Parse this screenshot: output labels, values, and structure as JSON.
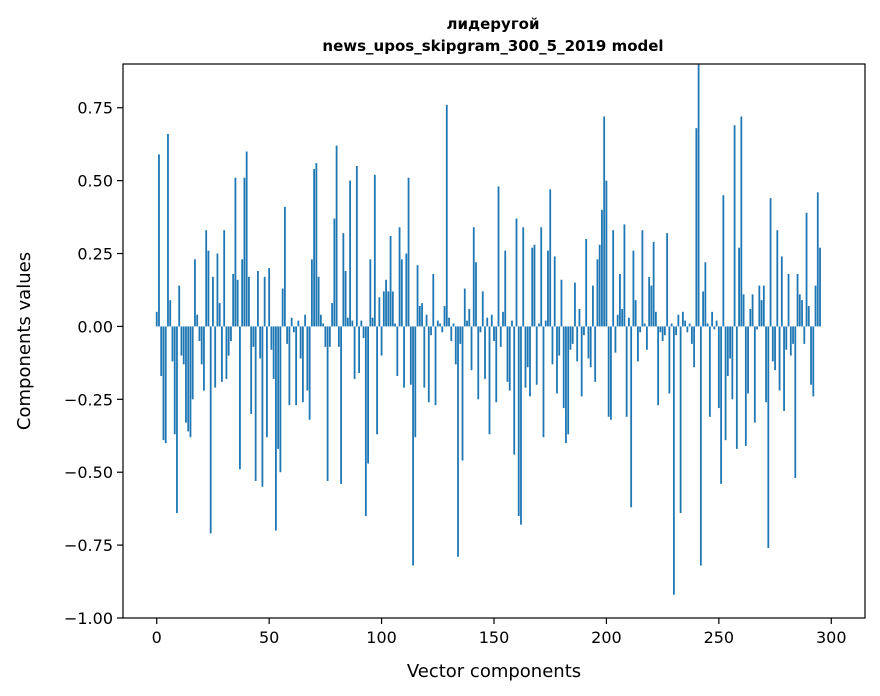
{
  "chart_data": {
    "type": "bar",
    "title": "лидеругой",
    "subtitle": "news_upos_skipgram_300_5_2019 model",
    "xlabel": "Vector components",
    "ylabel": "Components values",
    "xlim": [
      -15,
      315
    ],
    "ylim": [
      -1.0,
      0.9
    ],
    "xticks": [
      0,
      50,
      100,
      150,
      200,
      250,
      300
    ],
    "xtick_labels": [
      "0",
      "50",
      "100",
      "150",
      "200",
      "250",
      "300"
    ],
    "yticks": [
      -1.0,
      -0.75,
      -0.5,
      -0.25,
      0.0,
      0.25,
      0.5,
      0.75
    ],
    "ytick_labels": [
      "−1.00",
      "−0.75",
      "−0.50",
      "−0.25",
      "0.00",
      "0.25",
      "0.50",
      "0.75"
    ],
    "grid": false,
    "color": "#1f77b4",
    "series": [
      {
        "values": [
          0.05,
          0.59,
          -0.17,
          -0.39,
          -0.4,
          0.66,
          0.09,
          -0.12,
          -0.37,
          -0.64,
          0.14,
          -0.1,
          -0.13,
          -0.33,
          -0.36,
          -0.38,
          -0.25,
          0.23,
          0.04,
          -0.05,
          -0.13,
          -0.22,
          0.33,
          0.26,
          -0.71,
          0.17,
          -0.21,
          0.25,
          0.08,
          -0.19,
          0.33,
          -0.18,
          -0.1,
          -0.05,
          0.18,
          0.51,
          0.16,
          -0.49,
          0.23,
          0.51,
          0.6,
          0.17,
          -0.3,
          -0.07,
          -0.53,
          0.19,
          -0.11,
          -0.55,
          0.17,
          -0.38,
          0.2,
          -0.08,
          -0.18,
          -0.7,
          -0.42,
          -0.5,
          0.13,
          0.41,
          -0.06,
          -0.27,
          0.03,
          -0.02,
          -0.27,
          0.02,
          -0.11,
          -0.26,
          0.04,
          -0.22,
          -0.32,
          0.23,
          0.54,
          0.56,
          0.17,
          0.04,
          0.01,
          -0.07,
          -0.53,
          -0.07,
          0.08,
          0.37,
          0.62,
          -0.07,
          -0.54,
          0.32,
          0.19,
          0.03,
          0.5,
          0.02,
          -0.18,
          0.55,
          -0.16,
          0.02,
          -0.04,
          -0.65,
          -0.47,
          0.23,
          0.03,
          0.52,
          -0.37,
          0.1,
          -0.1,
          0.12,
          0.16,
          0.12,
          0.31,
          0.12,
          0.01,
          -0.17,
          0.34,
          0.23,
          -0.21,
          0.25,
          0.51,
          -0.2,
          -0.82,
          -0.38,
          0.21,
          0.07,
          0.08,
          -0.21,
          0.04,
          -0.26,
          -0.03,
          0.18,
          -0.27,
          0.02,
          0.01,
          -0.02,
          0.07,
          0.76,
          0.03,
          -0.05,
          0.01,
          -0.13,
          -0.79,
          -0.06,
          -0.46,
          0.13,
          0.02,
          0.06,
          -0.15,
          0.34,
          0.22,
          -0.25,
          -0.02,
          0.12,
          -0.18,
          0.03,
          -0.37,
          0.04,
          -0.05,
          -0.26,
          0.48,
          -0.07,
          0.05,
          0.26,
          -0.19,
          -0.22,
          0.02,
          -0.44,
          0.37,
          -0.65,
          -0.68,
          0.34,
          -0.21,
          -0.14,
          -0.24,
          0.27,
          0.28,
          -0.2,
          0.01,
          0.34,
          -0.38,
          0.02,
          0.26,
          0.47,
          -0.13,
          0.24,
          -0.23,
          -0.1,
          0.16,
          -0.28,
          -0.4,
          -0.37,
          -0.08,
          -0.06,
          0.15,
          -0.12,
          0.06,
          -0.24,
          -0.03,
          0.3,
          -0.11,
          -0.14,
          0.14,
          -0.19,
          0.23,
          0.28,
          0.4,
          0.72,
          0.5,
          -0.31,
          -0.32,
          0.33,
          -0.09,
          0.04,
          0.18,
          0.06,
          0.35,
          -0.31,
          0.03,
          -0.62,
          0.26,
          0.09,
          -0.12,
          -0.02,
          0.33,
          0.01,
          -0.08,
          0.17,
          0.14,
          0.29,
          0.05,
          -0.27,
          -0.02,
          -0.05,
          -0.03,
          0.32,
          -0.23,
          0.01,
          -0.92,
          -0.03,
          0.04,
          -0.64,
          0.05,
          0.02,
          -0.02,
          0.01,
          -0.06,
          -0.14,
          0.68,
          0.9,
          -0.82,
          0.12,
          0.22,
          0.01,
          -0.31,
          0.05,
          -0.01,
          0.02,
          -0.28,
          -0.54,
          0.45,
          -0.39,
          -0.17,
          -0.11,
          -0.25,
          0.69,
          -0.42,
          0.27,
          0.72,
          0.11,
          -0.41,
          -0.23,
          0.06,
          0.11,
          -0.33,
          -0.01,
          0.14,
          0.09,
          0.14,
          -0.26,
          -0.76,
          0.44,
          -0.12,
          -0.15,
          0.33,
          -0.22,
          0.24,
          -0.29,
          -0.08,
          0.18,
          -0.1,
          -0.06,
          -0.52,
          0.18,
          0.11,
          0.09,
          -0.06,
          0.39,
          0.07,
          -0.2,
          -0.24,
          0.14,
          0.46,
          0.27
        ]
      }
    ]
  }
}
